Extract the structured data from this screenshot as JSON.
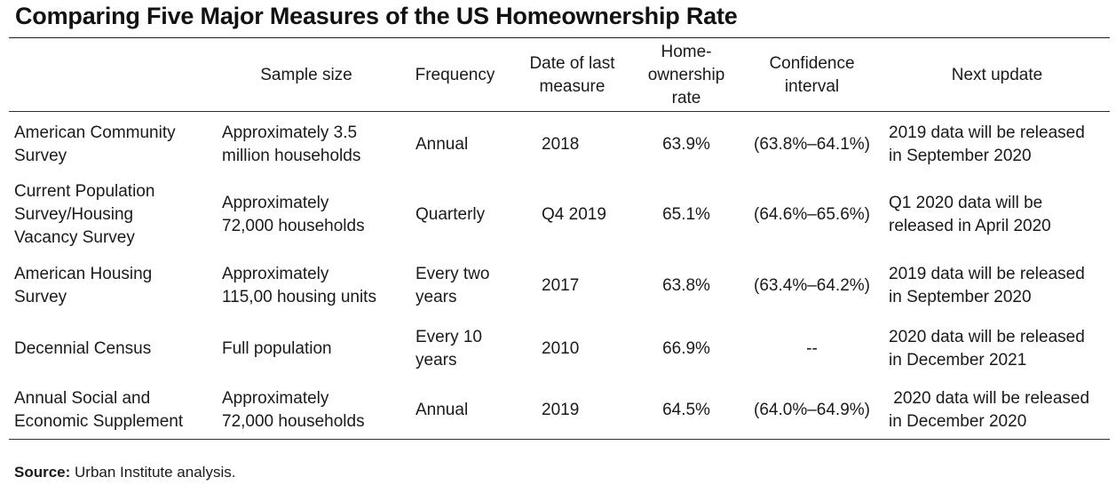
{
  "title": "Comparing Five Major Measures of the US Homeownership Rate",
  "columns": [
    "Sample size",
    "Frequency",
    "Date of last\nmeasure",
    "Home-\nownership\nrate",
    "Confidence\ninterval",
    "Next update"
  ],
  "rows": [
    {
      "name": "American Community\nSurvey",
      "sample": "Approximately 3.5\nmillion households",
      "frequency": "Annual",
      "date": "2018",
      "rate": "63.9%",
      "ci": "(63.8%–64.1%)",
      "next": "2019 data will be released\nin September 2020"
    },
    {
      "name": "Current Population\nSurvey/Housing\nVacancy Survey",
      "sample": "Approximately\n72,000 households",
      "frequency": "Quarterly",
      "date": "Q4 2019",
      "rate": "65.1%",
      "ci": "(64.6%–65.6%)",
      "next": "Q1 2020 data will be\nreleased in April 2020"
    },
    {
      "name": "American Housing\nSurvey",
      "sample": "Approximately\n115,00 housing units",
      "frequency": "Every two\nyears",
      "date": "2017",
      "rate": "63.8%",
      "ci": "(63.4%–64.2%)",
      "next": "2019 data will be released\nin September 2020"
    },
    {
      "name": "Decennial Census",
      "sample": "Full population",
      "frequency": "Every 10\nyears",
      "date": "2010",
      "rate": "66.9%",
      "ci": "--",
      "next": "2020 data will be released\nin December 2021"
    },
    {
      "name": "Annual Social and\nEconomic Supplement",
      "sample": "Approximately\n72,000 households",
      "frequency": "Annual",
      "date": "2019",
      "rate": "64.5%",
      "ci": "(64.0%–64.9%)",
      "next": " 2020 data will be released\nin December 2020"
    }
  ],
  "source": {
    "label": "Source:",
    "text": " Urban Institute analysis."
  }
}
